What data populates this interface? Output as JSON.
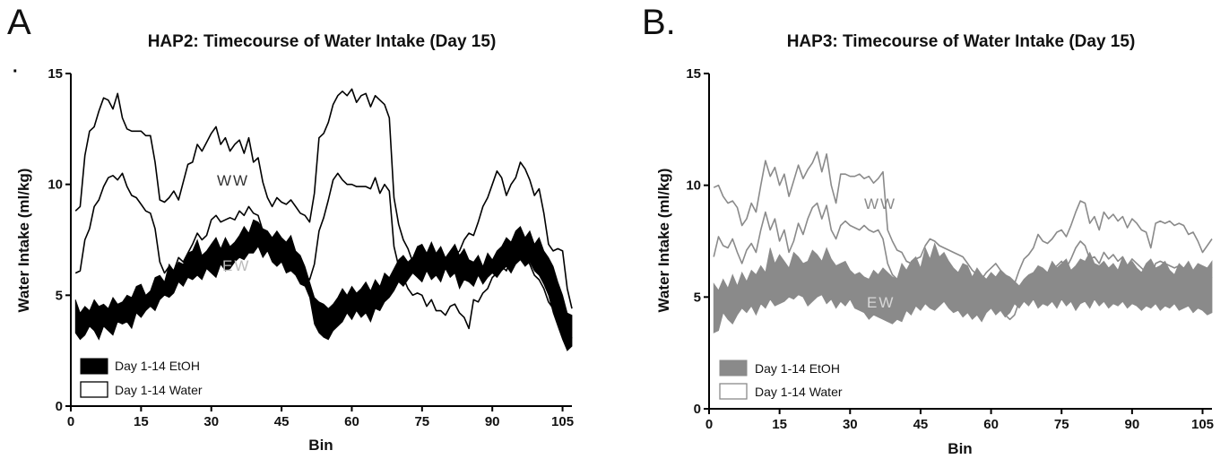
{
  "figure": {
    "letters": [
      "A",
      "B."
    ]
  },
  "chart_data": [
    {
      "type": "area",
      "panel": "A",
      "title": "HAP2:  Timecourse of Water Intake (Day 15)",
      "xlabel": "Bin",
      "ylabel": "Water Intake (ml/kg)",
      "xlim": [
        0,
        107
      ],
      "ylim": [
        0,
        15
      ],
      "xticks": [
        0,
        15,
        30,
        45,
        60,
        75,
        90,
        105
      ],
      "yticks": [
        0,
        5,
        10,
        15
      ],
      "grid": false,
      "legend_position": "bottom-left",
      "band_labels": [
        "WW",
        "EW"
      ],
      "colors": {
        "etoh_fill": "#000000",
        "water_line": "#000000",
        "ew_label": "#bbbbbb",
        "ww_label": "#333333"
      },
      "x": [
        1,
        2,
        3,
        4,
        5,
        6,
        7,
        8,
        9,
        10,
        11,
        12,
        13,
        14,
        15,
        16,
        17,
        18,
        19,
        20,
        21,
        22,
        23,
        24,
        25,
        26,
        27,
        28,
        29,
        30,
        31,
        32,
        33,
        34,
        35,
        36,
        37,
        38,
        39,
        40,
        41,
        42,
        43,
        44,
        45,
        46,
        47,
        48,
        49,
        50,
        51,
        52,
        53,
        54,
        55,
        56,
        57,
        58,
        59,
        60,
        61,
        62,
        63,
        64,
        65,
        66,
        67,
        68,
        69,
        70,
        71,
        72,
        73,
        74,
        75,
        76,
        77,
        78,
        79,
        80,
        81,
        82,
        83,
        84,
        85,
        86,
        87,
        88,
        89,
        90,
        91,
        92,
        93,
        94,
        95,
        96,
        97,
        98,
        99,
        100,
        101,
        102,
        103,
        104,
        105,
        106,
        107
      ],
      "series": [
        {
          "name": "Day 1-14 EtOH",
          "style": "filled-band",
          "upper": [
            4.8,
            4.2,
            4.5,
            4.3,
            4.8,
            4.5,
            4.6,
            4.4,
            4.9,
            4.6,
            4.7,
            5.0,
            4.9,
            5.4,
            5.5,
            5.0,
            5.2,
            5.8,
            5.9,
            5.6,
            6.4,
            6.1,
            6.5,
            6.4,
            6.9,
            7.0,
            7.5,
            6.8,
            7.0,
            7.3,
            7.6,
            7.1,
            7.6,
            7.2,
            7.4,
            7.7,
            8.1,
            7.8,
            8.4,
            8.3,
            8.0,
            7.9,
            7.6,
            7.9,
            7.6,
            7.4,
            7.7,
            7.0,
            6.8,
            6.3,
            5.6,
            4.9,
            4.7,
            4.6,
            4.4,
            4.6,
            4.9,
            5.3,
            5.0,
            5.4,
            5.1,
            5.3,
            5.6,
            5.2,
            5.7,
            5.4,
            6.0,
            5.8,
            6.2,
            6.6,
            6.8,
            6.5,
            6.7,
            7.2,
            7.3,
            6.9,
            7.4,
            6.9,
            7.2,
            6.7,
            7.0,
            7.3,
            6.8,
            7.1,
            6.6,
            6.5,
            6.8,
            6.3,
            6.9,
            6.6,
            7.0,
            7.2,
            7.6,
            7.4,
            7.9,
            8.1,
            7.6,
            7.9,
            7.3,
            7.6,
            7.0,
            6.7,
            6.3,
            5.6,
            5.0,
            4.2,
            4.1
          ],
          "lower": [
            3.3,
            3.0,
            3.2,
            3.6,
            3.4,
            3.0,
            3.6,
            3.4,
            3.2,
            3.8,
            3.7,
            3.8,
            3.5,
            4.2,
            4.0,
            4.3,
            4.5,
            4.3,
            4.8,
            5.0,
            4.9,
            5.1,
            5.6,
            5.4,
            5.8,
            5.7,
            5.9,
            5.7,
            6.2,
            6.0,
            5.8,
            6.4,
            6.1,
            6.2,
            6.5,
            6.7,
            6.6,
            6.9,
            6.9,
            7.2,
            6.7,
            7.0,
            6.5,
            6.3,
            6.5,
            6.0,
            6.1,
            5.9,
            5.5,
            5.4,
            4.9,
            3.7,
            3.3,
            3.1,
            3.0,
            3.4,
            3.6,
            3.8,
            4.2,
            3.9,
            4.3,
            4.0,
            4.2,
            3.8,
            4.4,
            4.3,
            4.7,
            4.9,
            5.2,
            5.6,
            5.4,
            5.7,
            6.0,
            5.8,
            5.6,
            6.1,
            5.7,
            5.9,
            5.6,
            6.2,
            5.8,
            6.0,
            5.3,
            5.7,
            5.6,
            5.4,
            5.9,
            5.5,
            5.8,
            6.0,
            5.8,
            6.1,
            6.3,
            6.0,
            6.4,
            6.6,
            6.3,
            6.5,
            6.1,
            5.9,
            5.5,
            5.0,
            4.2,
            3.6,
            3.0,
            2.5,
            2.7
          ]
        },
        {
          "name": "Day 1-14 Water",
          "style": "outline-band",
          "upper": [
            8.8,
            9.0,
            11.3,
            12.4,
            12.6,
            13.3,
            13.9,
            13.8,
            13.4,
            14.1,
            13.0,
            12.5,
            12.4,
            12.4,
            12.4,
            12.2,
            12.2,
            11.0,
            9.3,
            9.2,
            9.4,
            9.7,
            9.3,
            10.1,
            10.9,
            11.0,
            11.8,
            11.5,
            11.9,
            12.3,
            12.6,
            11.8,
            12.1,
            11.5,
            11.8,
            12.0,
            11.4,
            12.1,
            11.0,
            11.2,
            10.1,
            9.4,
            9.0,
            9.4,
            9.2,
            9.1,
            9.3,
            9.0,
            8.7,
            8.6,
            8.3,
            9.6,
            12.1,
            12.3,
            12.8,
            13.6,
            14.0,
            14.2,
            14.0,
            14.3,
            13.7,
            14.0,
            14.1,
            13.5,
            14.0,
            13.8,
            13.6,
            13.0,
            9.4,
            8.2,
            7.5,
            7.1,
            6.5,
            6.9,
            7.0,
            6.6,
            6.8,
            6.1,
            6.3,
            6.4,
            6.6,
            6.8,
            7.0,
            7.5,
            7.8,
            7.7,
            8.3,
            9.0,
            9.4,
            10.0,
            10.6,
            10.3,
            9.5,
            10.0,
            10.3,
            11.0,
            10.7,
            10.2,
            9.5,
            9.8,
            8.7,
            7.3,
            7.0,
            7.1,
            7.0,
            5.3,
            4.4
          ],
          "lower": [
            6.0,
            6.1,
            7.5,
            8.0,
            9.0,
            9.3,
            9.9,
            10.3,
            10.4,
            10.2,
            10.5,
            9.9,
            9.5,
            9.4,
            9.1,
            8.8,
            8.7,
            8.0,
            6.5,
            6.0,
            6.3,
            6.1,
            6.7,
            6.5,
            6.9,
            7.3,
            7.8,
            7.5,
            7.7,
            8.4,
            8.6,
            8.3,
            8.4,
            8.5,
            8.4,
            8.8,
            8.6,
            9.0,
            8.7,
            8.6,
            7.9,
            7.5,
            7.1,
            7.0,
            6.9,
            6.5,
            6.7,
            6.5,
            6.1,
            5.9,
            5.7,
            6.4,
            7.9,
            8.5,
            9.3,
            10.2,
            10.5,
            10.2,
            10.0,
            10.0,
            9.9,
            9.9,
            9.9,
            9.8,
            10.3,
            9.6,
            10.0,
            9.7,
            7.2,
            6.3,
            5.8,
            5.3,
            5.0,
            5.1,
            5.0,
            4.5,
            4.8,
            4.3,
            4.3,
            4.1,
            4.5,
            4.6,
            4.2,
            4.0,
            3.5,
            4.8,
            4.7,
            5.1,
            5.3,
            5.8,
            6.0,
            6.3,
            6.1,
            6.7,
            6.5,
            6.9,
            6.8,
            6.4,
            5.9,
            5.7,
            5.3,
            4.7,
            4.4,
            4.0,
            3.5,
            2.8,
            3.1
          ]
        }
      ]
    },
    {
      "type": "area",
      "panel": "B",
      "title": "HAP3:  Timecourse of Water Intake (Day 15)",
      "xlabel": "Bin",
      "ylabel": "Water Intake (ml/kg)",
      "xlim": [
        0,
        107
      ],
      "ylim": [
        0,
        15
      ],
      "xticks": [
        0,
        15,
        30,
        45,
        60,
        75,
        90,
        105
      ],
      "yticks": [
        0,
        5,
        10,
        15
      ],
      "grid": false,
      "legend_position": "bottom-left",
      "band_labels": [
        "WW",
        "EW"
      ],
      "colors": {
        "etoh_fill": "#8a8a8a",
        "water_line": "#8a8a8a",
        "ew_label": "#d8d8d8",
        "ww_label": "#8a8a8a"
      },
      "x": [
        1,
        2,
        3,
        4,
        5,
        6,
        7,
        8,
        9,
        10,
        11,
        12,
        13,
        14,
        15,
        16,
        17,
        18,
        19,
        20,
        21,
        22,
        23,
        24,
        25,
        26,
        27,
        28,
        29,
        30,
        31,
        32,
        33,
        34,
        35,
        36,
        37,
        38,
        39,
        40,
        41,
        42,
        43,
        44,
        45,
        46,
        47,
        48,
        49,
        50,
        51,
        52,
        53,
        54,
        55,
        56,
        57,
        58,
        59,
        60,
        61,
        62,
        63,
        64,
        65,
        66,
        67,
        68,
        69,
        70,
        71,
        72,
        73,
        74,
        75,
        76,
        77,
        78,
        79,
        80,
        81,
        82,
        83,
        84,
        85,
        86,
        87,
        88,
        89,
        90,
        91,
        92,
        93,
        94,
        95,
        96,
        97,
        98,
        99,
        100,
        101,
        102,
        103,
        104,
        105,
        106,
        107
      ],
      "series": [
        {
          "name": "Day 1-14 EtOH",
          "style": "filled-band",
          "upper": [
            5.6,
            5.3,
            5.8,
            5.4,
            6.0,
            5.5,
            6.1,
            5.7,
            6.2,
            6.0,
            6.4,
            6.1,
            7.2,
            6.5,
            6.9,
            6.6,
            6.3,
            7.0,
            6.8,
            6.5,
            6.6,
            7.1,
            6.9,
            6.6,
            7.2,
            6.7,
            6.4,
            6.5,
            6.6,
            6.2,
            6.0,
            6.1,
            5.9,
            5.8,
            6.2,
            6.0,
            6.3,
            6.1,
            5.9,
            5.8,
            6.5,
            6.2,
            6.6,
            6.8,
            6.3,
            7.2,
            6.7,
            7.4,
            6.8,
            7.0,
            6.6,
            6.3,
            6.1,
            6.5,
            6.4,
            5.9,
            6.3,
            6.0,
            5.8,
            6.1,
            5.9,
            6.2,
            6.0,
            5.9,
            5.7,
            5.5,
            5.8,
            6.0,
            6.1,
            6.4,
            6.3,
            6.1,
            6.6,
            6.3,
            6.5,
            6.7,
            6.2,
            6.4,
            6.7,
            6.6,
            7.0,
            6.5,
            6.4,
            6.6,
            6.3,
            6.5,
            6.2,
            6.8,
            6.4,
            6.6,
            6.3,
            6.1,
            6.5,
            6.7,
            6.3,
            6.4,
            6.6,
            6.2,
            6.0,
            6.5,
            6.3,
            6.6,
            6.2,
            6.5,
            6.4,
            6.3,
            6.6
          ],
          "lower": [
            3.4,
            3.5,
            4.3,
            4.0,
            3.8,
            4.2,
            4.5,
            4.3,
            4.6,
            4.2,
            4.7,
            4.5,
            4.9,
            4.6,
            4.7,
            4.8,
            5.0,
            4.9,
            5.1,
            5.0,
            4.6,
            4.8,
            5.0,
            5.1,
            4.7,
            4.9,
            4.5,
            4.8,
            4.6,
            4.9,
            4.5,
            4.4,
            4.3,
            4.0,
            4.2,
            4.1,
            4.0,
            3.9,
            3.8,
            4.0,
            3.9,
            4.4,
            4.2,
            4.6,
            4.4,
            4.7,
            4.5,
            4.4,
            4.6,
            4.8,
            4.5,
            4.3,
            4.4,
            4.1,
            4.3,
            4.0,
            4.2,
            3.9,
            4.3,
            4.5,
            4.2,
            4.4,
            4.1,
            4.3,
            4.7,
            4.5,
            4.8,
            4.6,
            4.9,
            4.5,
            4.7,
            4.6,
            4.8,
            4.5,
            4.9,
            4.6,
            4.8,
            4.4,
            4.7,
            4.8,
            4.5,
            4.9,
            4.6,
            4.8,
            4.5,
            4.7,
            4.6,
            4.8,
            4.5,
            4.7,
            4.6,
            4.4,
            4.6,
            4.5,
            4.7,
            4.4,
            4.6,
            4.5,
            4.7,
            4.4,
            4.5,
            4.6,
            4.3,
            4.5,
            4.4,
            4.2,
            4.3
          ]
        },
        {
          "name": "Day 1-14 Water",
          "style": "outline-band",
          "upper": [
            9.9,
            10.0,
            9.5,
            9.2,
            9.3,
            9.0,
            8.2,
            8.5,
            9.2,
            8.8,
            10.0,
            11.1,
            10.4,
            10.8,
            10.0,
            10.5,
            9.5,
            10.2,
            10.9,
            10.3,
            10.7,
            11.0,
            11.5,
            10.6,
            11.4,
            10.0,
            9.2,
            10.5,
            10.5,
            10.4,
            10.4,
            10.5,
            10.3,
            10.4,
            10.1,
            10.3,
            10.6,
            8.0,
            7.5,
            7.1,
            7.0,
            6.6,
            6.5,
            6.7,
            6.8,
            7.3,
            7.6,
            7.5,
            7.3,
            7.2,
            7.1,
            7.0,
            6.9,
            6.8,
            6.5,
            6.2,
            6.0,
            5.8,
            6.1,
            6.3,
            6.5,
            6.2,
            6.0,
            5.8,
            5.6,
            6.2,
            6.7,
            6.9,
            7.2,
            7.8,
            7.5,
            7.4,
            7.6,
            7.9,
            8.0,
            7.7,
            8.2,
            8.8,
            9.3,
            9.2,
            8.3,
            8.6,
            8.0,
            8.8,
            8.5,
            8.7,
            8.4,
            8.6,
            8.1,
            8.5,
            8.3,
            8.0,
            7.9,
            7.2,
            8.3,
            8.4,
            8.3,
            8.4,
            8.2,
            8.3,
            8.2,
            7.8,
            7.9,
            7.5,
            7.0,
            7.3,
            7.6
          ],
          "lower": [
            6.8,
            7.7,
            7.3,
            7.2,
            7.6,
            7.0,
            6.5,
            7.1,
            7.4,
            7.0,
            8.0,
            8.8,
            8.0,
            8.5,
            7.5,
            8.0,
            7.0,
            7.5,
            8.3,
            7.8,
            8.5,
            9.0,
            9.2,
            8.5,
            9.1,
            8.0,
            7.6,
            8.2,
            8.4,
            8.2,
            8.1,
            8.0,
            8.2,
            8.0,
            7.9,
            8.0,
            7.6,
            6.5,
            6.0,
            5.8,
            5.6,
            5.4,
            5.2,
            5.3,
            5.5,
            5.8,
            6.0,
            5.9,
            5.7,
            5.5,
            5.3,
            5.2,
            5.0,
            4.8,
            4.6,
            4.5,
            4.3,
            4.1,
            4.4,
            4.6,
            4.8,
            4.5,
            4.2,
            4.0,
            4.2,
            4.8,
            5.5,
            5.8,
            6.0,
            6.3,
            6.1,
            6.0,
            6.2,
            6.4,
            6.6,
            6.3,
            6.7,
            7.2,
            7.5,
            7.3,
            6.7,
            6.8,
            6.5,
            7.0,
            6.7,
            6.9,
            6.6,
            6.8,
            6.4,
            6.7,
            6.5,
            6.3,
            6.1,
            5.8,
            6.5,
            6.6,
            6.5,
            6.4,
            6.3,
            6.4,
            6.2,
            6.0,
            6.1,
            5.8,
            5.5,
            5.7,
            5.9
          ]
        }
      ],
      "legend": [
        {
          "label": "Day 1-14 EtOH",
          "style": "filled"
        },
        {
          "label": "Day 1-14 Water",
          "style": "outline"
        }
      ]
    }
  ],
  "panel_a_legend": [
    {
      "label": "Day 1-14 EtOH",
      "style": "filled"
    },
    {
      "label": "Day 1-14 Water",
      "style": "outline"
    }
  ]
}
